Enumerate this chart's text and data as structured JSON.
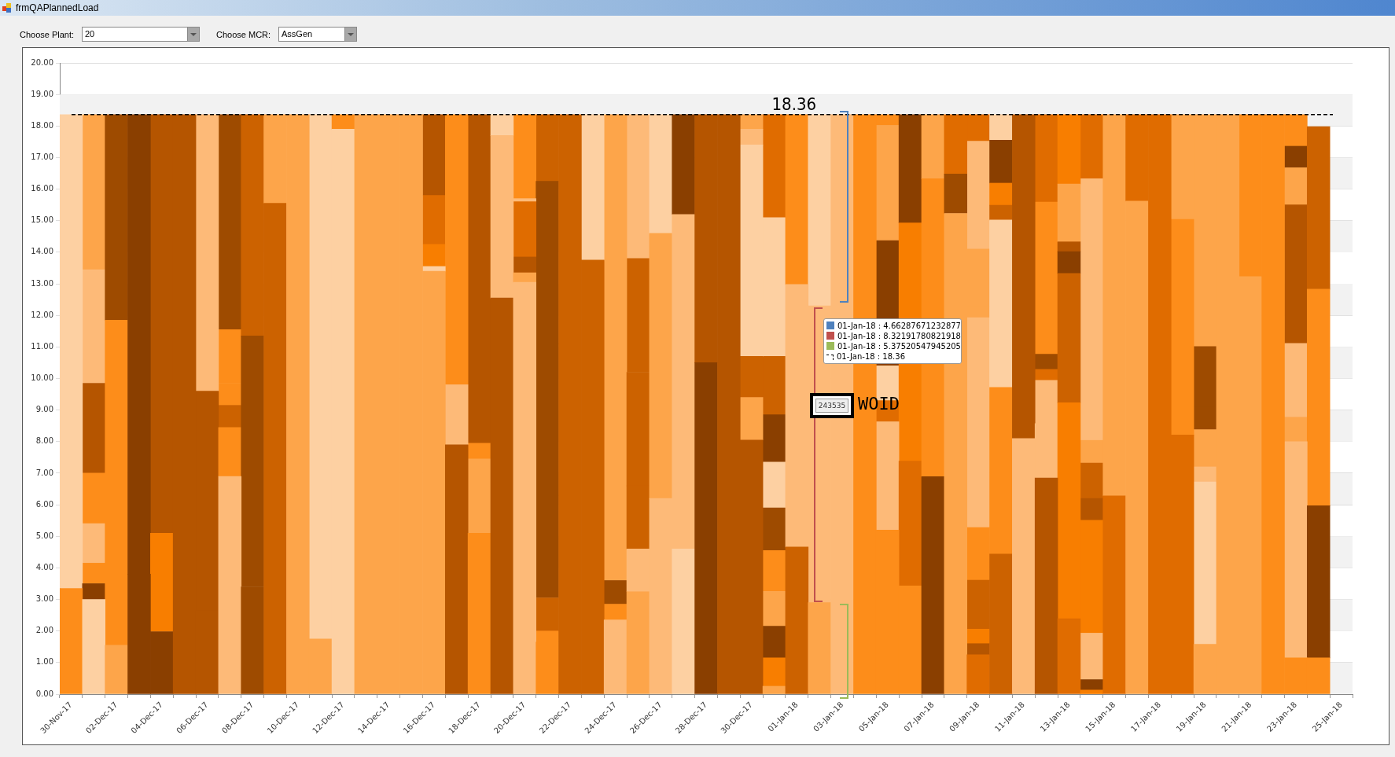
{
  "chart_data": {
    "type": "bar",
    "title": "frmQAPlannedLoad",
    "stacked": true,
    "grid": "y",
    "categories": [
      "30-Nov-17",
      null,
      "02-Dec-17",
      null,
      "04-Dec-17",
      null,
      "06-Dec-17",
      null,
      "08-Dec-17",
      null,
      "10-Dec-17",
      null,
      "12-Dec-17",
      null,
      "14-Dec-17",
      null,
      "16-Dec-17",
      null,
      "18-Dec-17",
      null,
      "20-Dec-17",
      null,
      "22-Dec-17",
      null,
      "24-Dec-17",
      null,
      "26-Dec-17",
      null,
      "28-Dec-17",
      null,
      "30-Dec-17",
      null,
      "01-Jan-18",
      null,
      "03-Jan-18",
      null,
      "05-Jan-18",
      null,
      "07-Jan-18",
      null,
      "09-Jan-18",
      null,
      "11-Jan-18",
      null,
      "13-Jan-18",
      null,
      "15-Jan-18",
      null,
      "17-Jan-18",
      null,
      "19-Jan-18",
      null,
      "21-Jan-18",
      null,
      "23-Jan-18",
      null,
      "25-Jan-18"
    ],
    "ylim": [
      0,
      20
    ],
    "yticks": [
      {
        "value": 0,
        "label": "0.00"
      },
      {
        "value": 1,
        "label": "1.00"
      },
      {
        "value": 2,
        "label": "2.00"
      },
      {
        "value": 3,
        "label": "3.00"
      },
      {
        "value": 4,
        "label": "4.00"
      },
      {
        "value": 5,
        "label": "5.00"
      },
      {
        "value": 6,
        "label": "6.00"
      },
      {
        "value": 7,
        "label": "7.00"
      },
      {
        "value": 8,
        "label": "8.00"
      },
      {
        "value": 9,
        "label": "9.00"
      },
      {
        "value": 10,
        "label": "10.00"
      },
      {
        "value": 11,
        "label": "11.00"
      },
      {
        "value": 12,
        "label": "12.00"
      },
      {
        "value": 13,
        "label": "13.00"
      },
      {
        "value": 14,
        "label": "14.00"
      },
      {
        "value": 15,
        "label": "15.00"
      },
      {
        "value": 16,
        "label": "16.00"
      },
      {
        "value": 17,
        "label": "17.00"
      },
      {
        "value": 18,
        "label": "18.00"
      },
      {
        "value": 19,
        "label": "19.00"
      },
      {
        "value": 20,
        "label": "20.00"
      }
    ],
    "ref_lines": [
      {
        "axis": "y",
        "value": 18.36,
        "label": "18.36",
        "color": "#000000",
        "line_style": "dashed"
      }
    ],
    "annotations": [
      "Choose Plant:",
      "20",
      "Choose MCR:",
      "AssGen",
      "01-Jan-18 : 4.66287671232877",
      "01-Jan-18 : 8.32191780821918",
      "01-Jan-18 : 5.37520547945205",
      "01-Jan-18 : 18.36",
      "243535",
      "WOID"
    ],
    "series": [
      {
        "values": [
          3.35,
          3.0,
          1.55,
          3.8,
          1.98,
          18.36,
          2.65,
          6.9,
          3.4,
          15.55,
          18.36,
          1.75,
          17.9,
          18.36,
          18.36,
          18.36,
          13.4,
          7.9,
          5.1,
          12.55,
          13.05,
          1.65,
          18.36,
          13.75,
          2.35,
          3.25,
          6.2,
          4.6,
          10.5,
          18.36,
          8.05,
          0.25,
          4.66,
          2.9,
          18.36,
          18.36,
          5.2,
          3.43,
          6.89,
          15.23,
          1.25,
          4.44,
          8.1,
          6.85,
          2.39,
          0.13,
          6.28,
          15.62,
          18.36,
          8.21,
          1.58,
          18.36,
          13.23,
          18.36,
          1.15,
          1.15,
          null
        ],
        "colors": [
          "#fd8d1a",
          "#fdd0a2",
          "#fda54a",
          "#8a3f00",
          "#8a3f00",
          "#b55500",
          "#b55500",
          "#fdba78",
          "#9e4b00",
          "#cc6200",
          "#fda54a",
          "#fda54a",
          "#fdd0a2",
          "#fda54a",
          "#fda54a",
          "#fda54a",
          "#fda54a",
          "#b55500",
          "#fd8d1a",
          "#b55500",
          "#fdba78",
          "#fd8d1a",
          "#cc6200",
          "#cc6200",
          "#fdba78",
          "#fda54a",
          "#fdba78",
          "#fdd0a2",
          "#8a3f00",
          "#b55500",
          "#b55500",
          "#fda54a",
          "#cc6200",
          "#fda54a",
          "#fdba78",
          "#fd8d1a",
          "#fd8d1a",
          "#fd8d1a",
          "#8a3f00",
          "#fda54a",
          "#e06c00",
          "#cc6200",
          "#fdba78",
          "#b55500",
          "#e06c00",
          "#f87e00",
          "#e06c00",
          "#fda54a",
          "#e06c00",
          "#e06c00",
          "#fda54a",
          "#fda54a",
          "#fda54a",
          "#fd8d1a",
          "#fd8d1a",
          "#fd8d1a",
          null
        ]
      },
      {
        "values": [
          15.01,
          0.5,
          10.3,
          14.56,
          3.12,
          null,
          6.95,
          1.55,
          7.95,
          2.81,
          null,
          16.61,
          0.46,
          null,
          null,
          null,
          0.15,
          1.9,
          2.35,
          5.15,
          0.3,
          0.35,
          null,
          4.61,
          0.5,
          1.35,
          8.4,
          10.6,
          7.86,
          null,
          1.35,
          0.9,
          8.32,
          9.4,
          null,
          null,
          3.43,
          3.95,
          6.06,
          1.25,
          0.35,
          5.28,
          10.26,
          1.72,
          6.84,
          0.33,
          12.08,
          2.74,
          null,
          6.83,
          5.14,
          null,
          5.13,
          null,
          6.85,
          4.82,
          null
        ],
        "colors": [
          "#fdd0a2",
          "#8a3f00",
          "#fd8d1a",
          "#8a3f00",
          "#f87e00",
          null,
          "#b55500",
          "#fd8d1a",
          "#9e4b00",
          "#fda54a",
          null,
          "#fdd0a2",
          "#fd8d1a",
          null,
          null,
          null,
          "#fdd0a2",
          "#fdba78",
          "#fda54a",
          "#fdba78",
          "#fda54a",
          "#fd8d1a",
          null,
          "#fdd0a2",
          "#fd8d1a",
          "#fdba78",
          "#fda54a",
          "#fdba78",
          "#b55500",
          null,
          "#fda54a",
          "#f87e00",
          "#fdba78",
          "#fdba78",
          null,
          null,
          "#fdba78",
          "#e06c00",
          "#fd8d1a",
          "#9e4b00",
          "#b55500",
          "#fd8d1a",
          "#b55500",
          "#fdba78",
          "#f87e00",
          "#8a3f00",
          "#fda54a",
          "#e06c00",
          null,
          "#fd8d1a",
          "#fdd0a2",
          null,
          "#fd8d1a",
          null,
          "#fdba78",
          "#8a3f00",
          null
        ]
      },
      {
        "values": [
          null,
          0.65,
          6.51,
          null,
          13.26,
          null,
          8.76,
          0.7,
          7.01,
          null,
          null,
          null,
          null,
          null,
          null,
          null,
          0.7,
          8.56,
          0.5,
          0.66,
          0.5,
          1.05,
          null,
          null,
          0.75,
          2.0,
          3.76,
          3.16,
          null,
          null,
          1.3,
          1.0,
          5.38,
          6.06,
          null,
          null,
          0.67,
          7.55,
          3.38,
          1.88,
          0.46,
          5.3,
          null,
          1.37,
          4.1,
          0.79,
          null,
          null,
          null,
          3.32,
          0.48,
          null,
          null,
          null,
          0.78,
          6.86,
          null
        ],
        "colors": [
          null,
          "#fd8d1a",
          "#9e4b00",
          null,
          "#b55500",
          null,
          "#fdba78",
          "#cc6200",
          "#cc6200",
          null,
          null,
          null,
          null,
          null,
          null,
          null,
          "#f87e00",
          "#fd8d1a",
          "#fd8d1a",
          "#fdd0a2",
          "#b55500",
          "#cc6200",
          null,
          null,
          "#9e4b00",
          "#cc6200",
          "#fdd0a2",
          "#8a3f00",
          null,
          null,
          "#cc6200",
          "#8a3f00",
          "#fd8d1a",
          "#fdd0a2",
          null,
          null,
          "#e06c00",
          "#f87e00",
          "#fd8d1a",
          "#e06c00",
          "#f87e00",
          "#fdd0a2",
          null,
          "#fdba78",
          "#cc6200",
          "#fdba78",
          null,
          null,
          null,
          "#fda54a",
          "#fdba78",
          null,
          null,
          null,
          "#fda54a",
          "#fd8d1a",
          null
        ]
      },
      {
        "values": [
          null,
          1.25,
          null,
          null,
          null,
          null,
          null,
          0.7,
          null,
          null,
          null,
          null,
          null,
          null,
          null,
          null,
          1.55,
          null,
          10.41,
          null,
          1.75,
          3.25,
          null,
          null,
          14.76,
          3.6,
          null,
          null,
          null,
          null,
          3.6,
          1.1,
          null,
          null,
          null,
          null,
          1.1,
          3.43,
          2.03,
          null,
          1.55,
          0.47,
          null,
          0.35,
          0.69,
          0.68,
          null,
          null,
          null,
          null,
          1.18,
          null,
          null,
          null,
          2.33,
          5.15,
          null
        ],
        "colors": [
          null,
          "#fdba78",
          null,
          null,
          null,
          null,
          null,
          "#fd8d1a",
          null,
          null,
          null,
          null,
          null,
          null,
          null,
          null,
          "#e06c00",
          null,
          "#b55500",
          null,
          "#e06c00",
          "#9e4b00",
          null,
          null,
          "#fda54a",
          "#cc6200",
          null,
          null,
          null,
          null,
          "#fdd0a2",
          "#fda54a",
          null,
          null,
          null,
          null,
          "#fdd0a2",
          "#8a3f00",
          "#fda54a",
          null,
          "#cc6200",
          "#cc6200",
          null,
          "#e06c00",
          "#8a3f00",
          "#fdba78",
          null,
          null,
          null,
          null,
          "#fda54a",
          null,
          null,
          null,
          "#fdba78",
          "#cc6200",
          null
        ]
      },
      {
        "values": [
          null,
          1.6,
          null,
          null,
          null,
          null,
          null,
          1.7,
          null,
          null,
          null,
          null,
          null,
          null,
          null,
          null,
          2.56,
          null,
          null,
          null,
          0.1,
          4.8,
          null,
          null,
          null,
          3.6,
          null,
          null,
          null,
          null,
          3.1,
          1.3,
          null,
          null,
          null,
          null,
          3.97,
          null,
          null,
          null,
          1.67,
          0.7,
          null,
          0.48,
          0.31,
          3.58,
          null,
          null,
          null,
          null,
          0.72,
          null,
          null,
          null,
          4.39,
          null,
          null
        ],
        "colors": [
          null,
          "#fd8d1a",
          null,
          null,
          null,
          null,
          null,
          "#fd8d1a",
          null,
          null,
          null,
          null,
          null,
          null,
          null,
          null,
          "#b55500",
          null,
          null,
          null,
          "#fdba78",
          "#9e4b00",
          null,
          null,
          null,
          "#cc6200",
          null,
          null,
          null,
          null,
          "#fdd0a2",
          "#fd8d1a",
          null,
          null,
          null,
          null,
          "#8a3f00",
          null,
          null,
          null,
          "#fd8d1a",
          "#f87e00",
          null,
          "#9e4b00",
          "#b55500",
          "#f87e00",
          null,
          null,
          null,
          null,
          "#9e4b00",
          null,
          null,
          null,
          "#b55500",
          null,
          null
        ]
      },
      {
        "values": [
          null,
          2.85,
          null,
          null,
          null,
          null,
          null,
          6.81,
          null,
          null,
          null,
          null,
          null,
          null,
          null,
          null,
          null,
          null,
          null,
          null,
          2.66,
          5.15,
          null,
          null,
          null,
          3.6,
          null,
          null,
          null,
          null,
          0.5,
          1.35,
          null,
          null,
          null,
          null,
          3.65,
          null,
          null,
          null,
          6.65,
          1.36,
          null,
          4.82,
          1.83,
          0.69,
          null,
          null,
          null,
          null,
          1.91,
          null,
          null,
          null,
          1.18,
          null,
          null
        ],
        "colors": [
          null,
          "#b55500",
          null,
          null,
          null,
          null,
          null,
          "#9e4b00",
          null,
          null,
          null,
          null,
          null,
          null,
          null,
          null,
          null,
          null,
          null,
          null,
          "#fd8d1a",
          "#9e4b00",
          null,
          null,
          null,
          "#fdba78",
          null,
          null,
          null,
          null,
          "#fdba78",
          "#9e4b00",
          null,
          null,
          null,
          null,
          "#fda54a",
          null,
          null,
          null,
          "#fdba78",
          "#8a3f00",
          null,
          "#fd8d1a",
          "#fda54a",
          "#b55500",
          null,
          null,
          null,
          null,
          "#9e4b00",
          null,
          null,
          null,
          "#fda54a",
          null,
          null
        ]
      },
      {
        "values": [
          null,
          3.6,
          null,
          null,
          null,
          null,
          null,
          null,
          null,
          null,
          null,
          null,
          null,
          null,
          null,
          null,
          null,
          null,
          null,
          null,
          null,
          2.11,
          null,
          null,
          null,
          0.96,
          null,
          null,
          null,
          null,
          0.46,
          1.45,
          null,
          null,
          null,
          null,
          0.34,
          null,
          null,
          null,
          0.35,
          0.81,
          null,
          2.77,
          2.2,
          1.12,
          null,
          null,
          null,
          null,
          7.35,
          null,
          null,
          null,
          0.68,
          null,
          null
        ],
        "colors": [
          null,
          "#fdba78",
          null,
          null,
          null,
          null,
          null,
          null,
          null,
          null,
          null,
          null,
          null,
          null,
          null,
          null,
          null,
          null,
          null,
          null,
          null,
          "#cc6200",
          null,
          null,
          null,
          "#fdba78",
          null,
          null,
          null,
          null,
          "#fda54a",
          "#fdd0a2",
          null,
          null,
          null,
          null,
          "#fd8d1a",
          null,
          null,
          null,
          "#fda54a",
          "#fdd0a2",
          null,
          "#e06c00",
          "#f87e00",
          "#cc6200",
          null,
          null,
          null,
          null,
          "#fda54a",
          null,
          null,
          null,
          "#8a3f00",
          null,
          null
        ]
      },
      {
        "values": [
          null,
          4.91,
          null,
          null,
          null,
          null,
          null,
          null,
          null,
          null,
          null,
          null,
          null,
          null,
          null,
          null,
          null,
          null,
          null,
          null,
          null,
          null,
          null,
          null,
          null,
          null,
          null,
          null,
          null,
          null,
          null,
          1.5,
          null,
          null,
          null,
          null,
          null,
          null,
          null,
          null,
          1.82,
          null,
          null,
          null,
          null,
          0.72,
          null,
          null,
          null,
          null,
          null,
          null,
          null,
          null,
          1.0,
          null,
          null
        ],
        "colors": [
          null,
          "#fda54a",
          null,
          null,
          null,
          null,
          null,
          null,
          null,
          null,
          null,
          null,
          null,
          null,
          null,
          null,
          null,
          null,
          null,
          null,
          null,
          null,
          null,
          null,
          null,
          null,
          null,
          null,
          null,
          null,
          null,
          "#8a3f00",
          null,
          null,
          null,
          null,
          null,
          null,
          null,
          null,
          "#fda54a",
          null,
          null,
          null,
          null,
          "#fda54a",
          null,
          null,
          null,
          null,
          null,
          null,
          null,
          null,
          "#fd8d1a",
          null,
          null
        ]
      },
      {
        "values": [
          null,
          null,
          null,
          null,
          null,
          null,
          null,
          null,
          null,
          null,
          null,
          null,
          null,
          null,
          null,
          null,
          null,
          null,
          null,
          null,
          null,
          null,
          null,
          null,
          null,
          null,
          null,
          null,
          null,
          null,
          null,
          1.85,
          null,
          null,
          null,
          null,
          null,
          null,
          null,
          null,
          3.42,
          null,
          null,
          null,
          null,
          8.29,
          null,
          null,
          null,
          null,
          null,
          null,
          null,
          null,
          null,
          null,
          null
        ],
        "colors": [
          null,
          null,
          null,
          null,
          null,
          null,
          null,
          null,
          null,
          null,
          null,
          null,
          null,
          null,
          null,
          null,
          null,
          null,
          null,
          null,
          null,
          null,
          null,
          null,
          null,
          null,
          null,
          null,
          null,
          null,
          null,
          "#cc6200",
          null,
          null,
          null,
          null,
          null,
          null,
          null,
          null,
          "#fdba78",
          null,
          null,
          null,
          null,
          "#fdba78",
          null,
          null,
          null,
          null,
          null,
          null,
          null,
          null,
          null,
          null,
          null
        ]
      },
      {
        "values": [
          null,
          null,
          null,
          null,
          null,
          null,
          null,
          null,
          null,
          null,
          null,
          null,
          null,
          null,
          null,
          null,
          null,
          null,
          null,
          null,
          null,
          null,
          null,
          null,
          null,
          null,
          null,
          null,
          null,
          null,
          null,
          2.2,
          null,
          null,
          null,
          null,
          null,
          null,
          null,
          null,
          0.84,
          null,
          null,
          null,
          null,
          2.03,
          null,
          null,
          null,
          null,
          null,
          null,
          null,
          null,
          null,
          null,
          null
        ],
        "colors": [
          null,
          null,
          null,
          null,
          null,
          null,
          null,
          null,
          null,
          null,
          null,
          null,
          null,
          null,
          null,
          null,
          null,
          null,
          null,
          null,
          null,
          null,
          null,
          null,
          null,
          null,
          null,
          null,
          null,
          null,
          null,
          "#fdd0a2",
          null,
          null,
          null,
          null,
          null,
          null,
          null,
          null,
          "#e06c00",
          null,
          null,
          null,
          null,
          "#e06c00",
          null,
          null,
          null,
          null,
          null,
          null,
          null,
          null,
          null,
          null,
          null
        ]
      },
      {
        "values": [
          null,
          null,
          null,
          null,
          null,
          null,
          null,
          null,
          null,
          null,
          null,
          null,
          null,
          null,
          null,
          null,
          null,
          null,
          null,
          null,
          null,
          null,
          null,
          null,
          null,
          null,
          null,
          null,
          null,
          null,
          null,
          2.2,
          null,
          null,
          null,
          null,
          null,
          null,
          null,
          null,
          null,
          null,
          null,
          null,
          null,
          null,
          null,
          null,
          null,
          null,
          null,
          null,
          null,
          null,
          null,
          null,
          null
        ],
        "colors": [
          null,
          null,
          null,
          null,
          null,
          null,
          null,
          null,
          null,
          null,
          null,
          null,
          null,
          null,
          null,
          null,
          null,
          null,
          null,
          null,
          null,
          null,
          null,
          null,
          null,
          null,
          null,
          null,
          null,
          null,
          null,
          "#fdd0a2",
          null,
          null,
          null,
          null,
          null,
          null,
          null,
          null,
          null,
          null,
          null,
          null,
          null,
          null,
          null,
          null,
          null,
          null,
          null,
          null,
          null,
          null,
          null,
          null,
          null
        ]
      },
      {
        "values": [
          null,
          null,
          null,
          null,
          null,
          null,
          null,
          null,
          null,
          null,
          null,
          null,
          null,
          null,
          null,
          null,
          null,
          null,
          null,
          null,
          null,
          null,
          null,
          null,
          null,
          null,
          null,
          null,
          null,
          null,
          null,
          3.26,
          null,
          null,
          null,
          null,
          null,
          null,
          null,
          null,
          null,
          null,
          null,
          null,
          null,
          null,
          null,
          null,
          null,
          null,
          null,
          null,
          null,
          null,
          null,
          null,
          null
        ],
        "colors": [
          null,
          null,
          null,
          null,
          null,
          null,
          null,
          null,
          null,
          null,
          null,
          null,
          null,
          null,
          null,
          null,
          null,
          null,
          null,
          null,
          null,
          null,
          null,
          null,
          null,
          null,
          null,
          null,
          null,
          null,
          null,
          "#e06c00",
          null,
          null,
          null,
          null,
          null,
          null,
          null,
          null,
          null,
          null,
          null,
          null,
          null,
          null,
          null,
          null,
          null,
          null,
          null,
          null,
          null,
          null,
          null,
          null,
          null
        ]
      }
    ]
  }
}
